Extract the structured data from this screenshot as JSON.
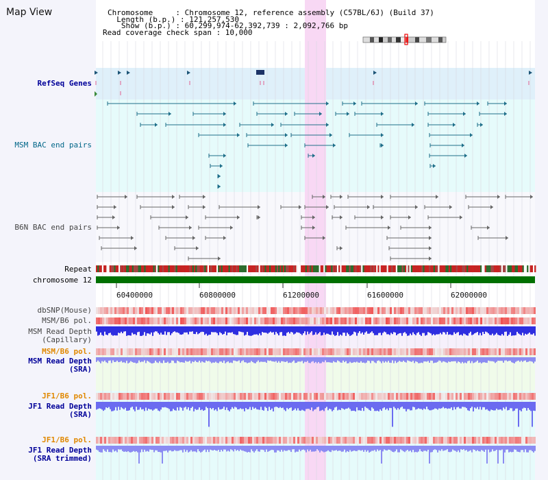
{
  "title": "Map View",
  "header": {
    "chromosome_line": "Chromosome     : Chromosome 12, reference assembly (C57BL/6J) (Build 37)",
    "length_line": "  Length (b.p.) : 121,257,530",
    "show_line": "   Show (b.p.) : 60,299,974-62,392,739 : 2,092,766 bp",
    "coverage_line": "Read coverage check span : 10,000"
  },
  "tracks": {
    "refseq_genes": "RefSeq Genes",
    "msm_bac": "MSM BAC end pairs",
    "b6n_bac": "B6N BAC end pairs",
    "repeat": "Repeat",
    "chromosome": "chromosome 12",
    "dbsnp": "dbSNP(Mouse)",
    "msm_b6_pol": "MSM/B6 pol.",
    "msm_depth_cap_1": "MSM Read Depth",
    "msm_depth_cap_2": "(Capillary)",
    "msm_b6_pol_2": "MSM/B6 pol.",
    "msm_depth_sra_1": "MSM Read Depth",
    "msm_depth_sra_2": "(SRA)",
    "jf1_b6_pol": "JF1/B6 pol.",
    "jf1_depth_sra_1": "JF1 Read Depth",
    "jf1_depth_sra_2": "(SRA)",
    "jf1_b6_pol_2": "JF1/B6 pol.",
    "jf1_depth_trim_1": "JF1 Read Depth",
    "jf1_depth_trim_2": "(SRA trimmed)"
  },
  "axis": {
    "ticks": [
      "60400000",
      "60800000",
      "61200000",
      "61600000",
      "62000000"
    ]
  },
  "colors": {
    "refseq_bg": "#dff0fa",
    "msm_bac_bg": "#e6fbfb",
    "highlight": "#f8d8f4",
    "chromosome_bar": "#007000",
    "depth_blue": "#2e2ee0",
    "depth_light": "#8b8bf2",
    "pol_red": "#f07070",
    "navy_label": "#000099",
    "orange_label": "#e08800",
    "teal_label": "#006688"
  }
}
